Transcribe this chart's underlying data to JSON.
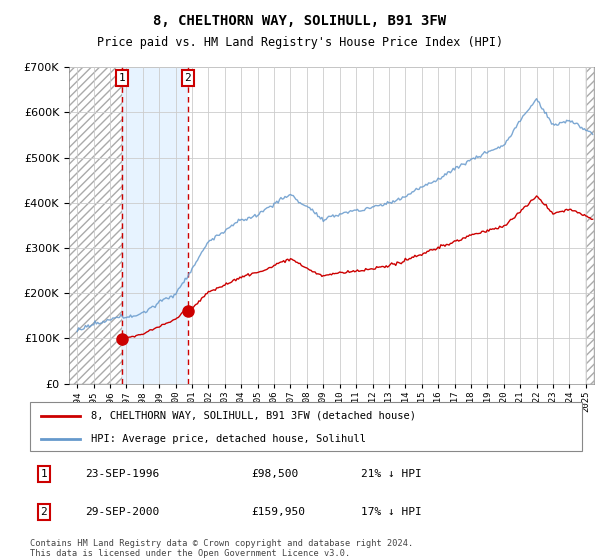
{
  "title": "8, CHELTHORN WAY, SOLIHULL, B91 3FW",
  "subtitle": "Price paid vs. HM Land Registry's House Price Index (HPI)",
  "legend_label_red": "8, CHELTHORN WAY, SOLIHULL, B91 3FW (detached house)",
  "legend_label_blue": "HPI: Average price, detached house, Solihull",
  "table_rows": [
    {
      "num": 1,
      "date": "23-SEP-1996",
      "price": "£98,500",
      "hpi": "21% ↓ HPI"
    },
    {
      "num": 2,
      "date": "29-SEP-2000",
      "price": "£159,950",
      "hpi": "17% ↓ HPI"
    }
  ],
  "footer": "Contains HM Land Registry data © Crown copyright and database right 2024.\nThis data is licensed under the Open Government Licence v3.0.",
  "sale1_year": 1996.72,
  "sale1_price": 98500,
  "sale2_year": 2000.74,
  "sale2_price": 159950,
  "hpi_color": "#6699cc",
  "sale_color": "#cc0000",
  "grid_color": "#cccccc",
  "ylim": [
    0,
    700000
  ],
  "xlim_start": 1993.5,
  "xlim_end": 2025.5
}
